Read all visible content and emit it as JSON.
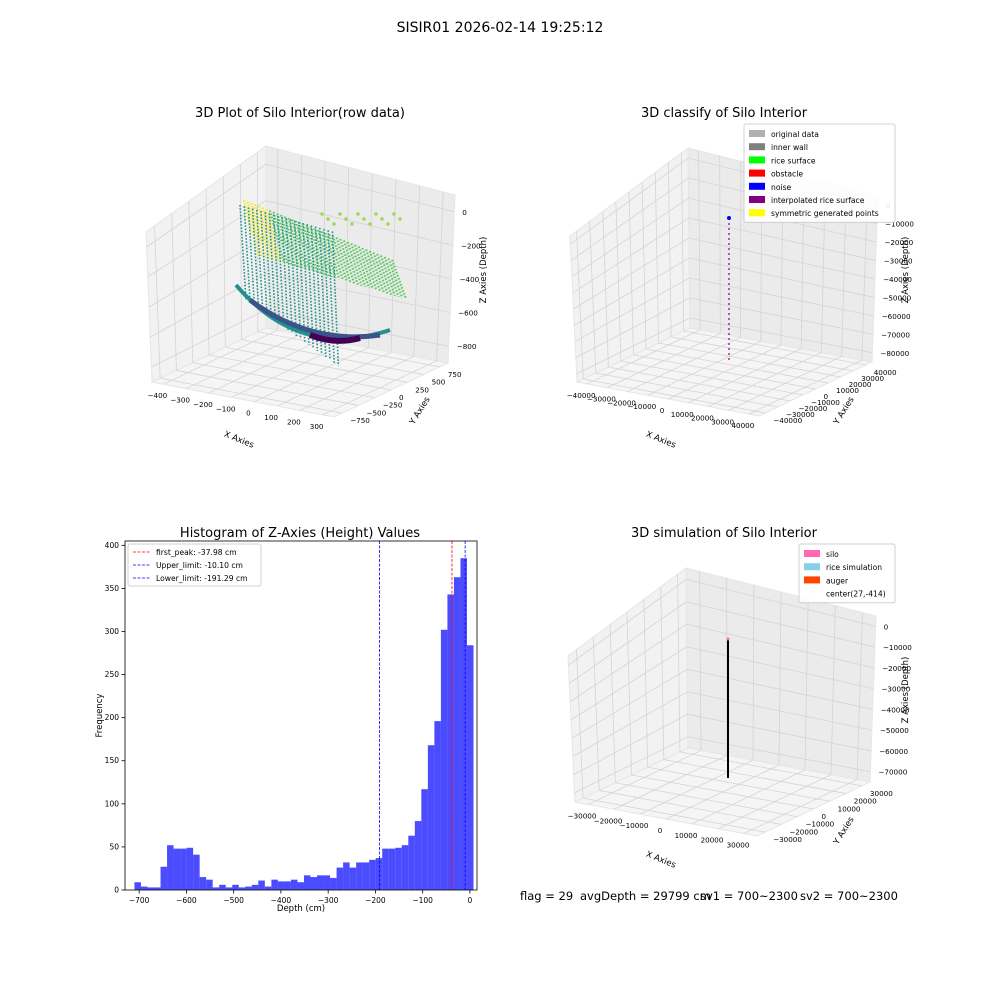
{
  "suptitle": "SISIR01 2026-02-14 19:25:12",
  "panels": {
    "raw": {
      "title": "3D Plot of Silo Interior(row data)",
      "xlabel": "X Axies",
      "ylabel": "Y Axies",
      "zlabel": "Z Axies (Depth)",
      "xticks": [
        "−400",
        "−300",
        "−200",
        "−100",
        "0",
        "100",
        "200",
        "300"
      ],
      "yticks": [
        "−750",
        "−500",
        "−250",
        "0",
        "250",
        "500",
        "750"
      ],
      "zticks": [
        "0",
        "−200",
        "−400",
        "−600",
        "−800"
      ]
    },
    "classify": {
      "title": "3D classify of Silo Interior",
      "xlabel": "X Axies",
      "ylabel": "Y Axies",
      "zlabel": "Z Axies (Depth)",
      "xticks": [
        "−40000",
        "−30000",
        "−20000",
        "−10000",
        "0",
        "10000",
        "20000",
        "30000",
        "40000"
      ],
      "yticks": [
        "−40000",
        "−30000",
        "−20000",
        "−10000",
        "0",
        "10000",
        "20000",
        "30000",
        "40000"
      ],
      "zticks": [
        "0",
        "−10000",
        "−20000",
        "−30000",
        "−40000",
        "−50000",
        "−60000",
        "−70000",
        "−80000"
      ],
      "legend": [
        {
          "label": "original data",
          "color": "#b0b0b0"
        },
        {
          "label": "inner wall",
          "color": "#808080"
        },
        {
          "label": "rice surface",
          "color": "#00ff00"
        },
        {
          "label": "obstacle",
          "color": "#ff0000"
        },
        {
          "label": "noise",
          "color": "#0000ff"
        },
        {
          "label": "interpolated rice surface",
          "color": "#800080"
        },
        {
          "label": "symmetric generated points",
          "color": "#ffff00"
        }
      ]
    },
    "simulation": {
      "title": "3D simulation of Silo Interior",
      "xlabel": "X Axies",
      "ylabel": "Y Axies",
      "zlabel": "Z Axies (Depth)",
      "xticks": [
        "−30000",
        "−20000",
        "−10000",
        "0",
        "10000",
        "20000",
        "30000"
      ],
      "yticks": [
        "−30000",
        "−20000",
        "−10000",
        "0",
        "10000",
        "20000",
        "30000"
      ],
      "zticks": [
        "0",
        "−10000",
        "−20000",
        "−30000",
        "−40000",
        "−50000",
        "−60000",
        "−70000"
      ],
      "legend": [
        {
          "label": "silo",
          "color": "#ff69b4"
        },
        {
          "label": "rice simulation",
          "color": "#87ceeb"
        },
        {
          "label": "auger",
          "color": "#ff4500"
        },
        {
          "label": "center(27,-414)",
          "color": ""
        }
      ]
    }
  },
  "status": {
    "flag": "flag = 29",
    "avg_depth": "avgDepth = 29799 cm",
    "sv1": "sv1 = 700~2300",
    "sv2": "sv2 = 700~2300"
  },
  "chart_data": {
    "type": "bar",
    "title": "Histogram of Z-Axies (Height) Values",
    "xlabel": "Depth (cm)",
    "ylabel": "Frequency",
    "xlim": [
      -730,
      15
    ],
    "ylim": [
      0,
      405
    ],
    "xticks": [
      -700,
      -600,
      -500,
      -400,
      -300,
      -200,
      -100,
      0
    ],
    "yticks": [
      0,
      50,
      100,
      150,
      200,
      250,
      300,
      350,
      400
    ],
    "bar_color": "#0000ff",
    "bin_start": -710.0,
    "bin_width": 13.8,
    "counts": [
      9,
      4,
      3,
      3,
      27,
      52,
      48,
      48,
      49,
      41,
      15,
      12,
      3,
      6,
      3,
      6,
      3,
      4,
      6,
      11,
      4,
      12,
      10,
      10,
      12,
      9,
      17,
      15,
      17,
      17,
      14,
      26,
      32,
      26,
      32,
      32,
      35,
      37,
      48,
      48,
      49,
      52,
      63,
      80,
      117,
      168,
      196,
      302,
      343,
      363,
      385,
      284
    ],
    "vlines": [
      {
        "label": "first_peak: -37.98 cm",
        "x": -37.98,
        "color": "#ff0000"
      },
      {
        "label": "Upper_limit: -10.10 cm",
        "x": -10.1,
        "color": "#0000ff"
      },
      {
        "label": "Lower_limit: -191.29 cm",
        "x": -191.29,
        "color": "#0000ff"
      }
    ]
  }
}
